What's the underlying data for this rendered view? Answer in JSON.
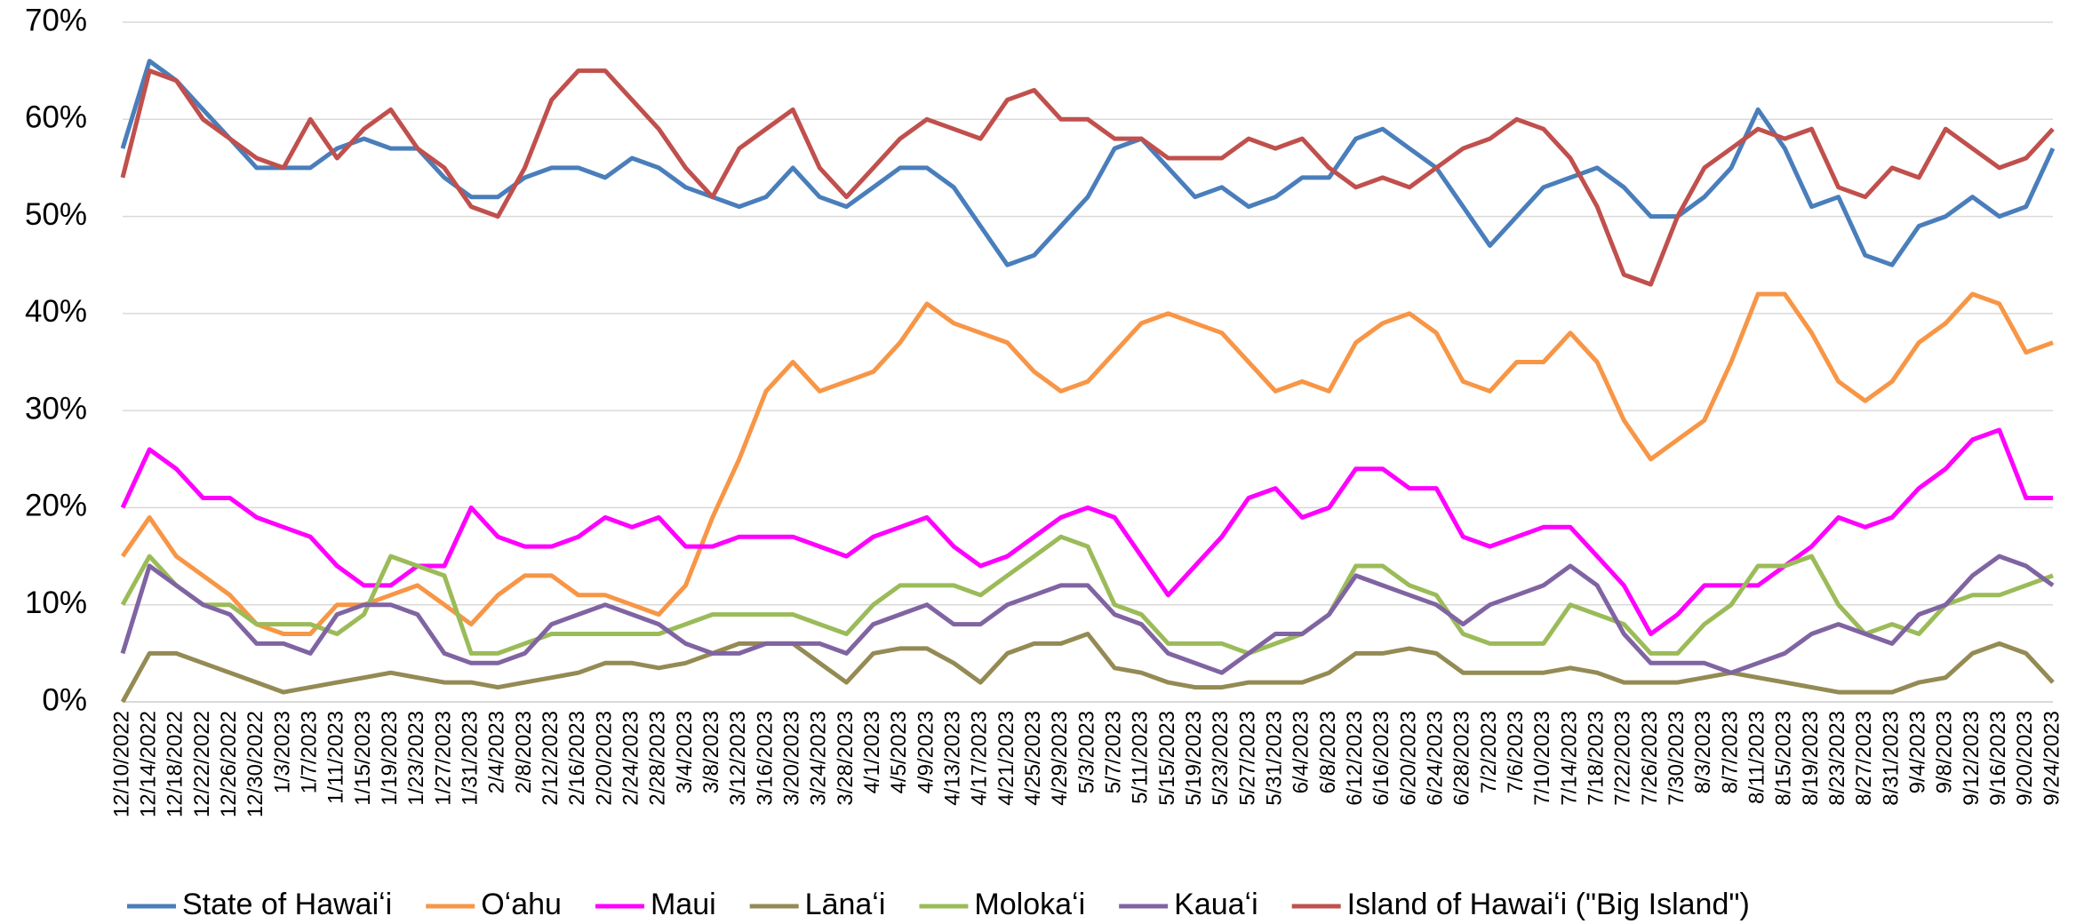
{
  "chart_data": {
    "type": "line",
    "categories": [
      "12/10/2022",
      "12/14/2022",
      "12/18/2022",
      "12/22/2022",
      "12/26/2022",
      "12/30/2022",
      "1/3/2023",
      "1/7/2023",
      "1/11/2023",
      "1/15/2023",
      "1/19/2023",
      "1/23/2023",
      "1/27/2023",
      "1/31/2023",
      "2/4/2023",
      "2/8/2023",
      "2/12/2023",
      "2/16/2023",
      "2/20/2023",
      "2/24/2023",
      "2/28/2023",
      "3/4/2023",
      "3/8/2023",
      "3/12/2023",
      "3/16/2023",
      "3/20/2023",
      "3/24/2023",
      "3/28/2023",
      "4/1/2023",
      "4/5/2023",
      "4/9/2023",
      "4/13/2023",
      "4/17/2023",
      "4/21/2023",
      "4/25/2023",
      "4/29/2023",
      "5/3/2023",
      "5/7/2023",
      "5/11/2023",
      "5/15/2023",
      "5/19/2023",
      "5/23/2023",
      "5/27/2023",
      "5/31/2023",
      "6/4/2023",
      "6/8/2023",
      "6/12/2023",
      "6/16/2023",
      "6/20/2023",
      "6/24/2023",
      "6/28/2023",
      "7/2/2023",
      "7/6/2023",
      "7/10/2023",
      "7/14/2023",
      "7/18/2023",
      "7/22/2023",
      "7/26/2023",
      "7/30/2023",
      "8/3/2023",
      "8/7/2023",
      "8/11/2023",
      "8/15/2023",
      "8/19/2023",
      "8/23/2023",
      "8/27/2023",
      "8/31/2023",
      "9/4/2023",
      "9/8/2023",
      "9/12/2023",
      "9/16/2023",
      "9/20/2023",
      "9/24/2023"
    ],
    "series": [
      {
        "name": "State of Hawaiʻi",
        "color": "#4a7ebb",
        "values": [
          57,
          66,
          64,
          61,
          58,
          55,
          55,
          55,
          57,
          58,
          57,
          57,
          54,
          52,
          52,
          54,
          55,
          55,
          54,
          56,
          55,
          53,
          52,
          51,
          52,
          55,
          52,
          51,
          53,
          55,
          55,
          53,
          49,
          45,
          46,
          49,
          52,
          57,
          58,
          55,
          52,
          53,
          51,
          52,
          54,
          54,
          58,
          59,
          57,
          55,
          51,
          47,
          50,
          53,
          54,
          55,
          53,
          50,
          50,
          52,
          55,
          61,
          57,
          51,
          52,
          46,
          45,
          49,
          50,
          52,
          50,
          51,
          57
        ]
      },
      {
        "name": "Oʻahu",
        "color": "#f79646",
        "values": [
          15,
          19,
          15,
          13,
          11,
          8,
          7,
          7,
          10,
          10,
          11,
          12,
          10,
          8,
          11,
          13,
          13,
          11,
          11,
          10,
          9,
          12,
          19,
          25,
          32,
          35,
          32,
          33,
          34,
          37,
          41,
          39,
          38,
          37,
          34,
          32,
          33,
          36,
          39,
          40,
          39,
          38,
          35,
          32,
          33,
          32,
          37,
          39,
          40,
          38,
          33,
          32,
          35,
          35,
          38,
          35,
          29,
          25,
          27,
          29,
          35,
          42,
          42,
          38,
          33,
          31,
          33,
          37,
          39,
          42,
          41,
          36,
          37
        ]
      },
      {
        "name": "Maui",
        "color": "#ff00ff",
        "values": [
          20,
          26,
          24,
          21,
          21,
          19,
          18,
          17,
          14,
          12,
          12,
          14,
          14,
          20,
          17,
          16,
          16,
          17,
          19,
          18,
          19,
          16,
          16,
          17,
          17,
          17,
          16,
          15,
          17,
          18,
          19,
          16,
          14,
          15,
          17,
          19,
          20,
          19,
          15,
          11,
          14,
          17,
          21,
          22,
          19,
          20,
          24,
          24,
          22,
          22,
          17,
          16,
          17,
          18,
          18,
          15,
          12,
          7,
          9,
          12,
          12,
          12,
          14,
          16,
          19,
          18,
          19,
          22,
          24,
          27,
          28,
          21,
          21
        ]
      },
      {
        "name": "Lānaʻi",
        "color": "#948a54",
        "values": [
          0,
          5,
          5,
          4,
          3,
          2,
          1,
          1.5,
          2,
          2.5,
          3,
          2.5,
          2,
          2,
          1.5,
          2,
          2.5,
          3,
          4,
          4,
          3.5,
          4,
          5,
          6,
          6,
          6,
          4,
          2,
          5,
          5.5,
          5.5,
          4,
          2,
          5,
          6,
          6,
          7,
          3.5,
          3,
          2,
          1.5,
          1.5,
          2,
          2,
          2,
          3,
          5,
          5,
          5.5,
          5,
          3,
          3,
          3,
          3,
          3.5,
          3,
          2,
          2,
          2,
          2.5,
          3,
          2.5,
          2,
          1.5,
          1,
          1,
          1,
          2,
          2.5,
          5,
          6,
          5,
          2
        ]
      },
      {
        "name": "Molokaʻi",
        "color": "#9bbb59",
        "values": [
          10,
          15,
          12,
          10,
          10,
          8,
          8,
          8,
          7,
          9,
          15,
          14,
          13,
          5,
          5,
          6,
          7,
          7,
          7,
          7,
          7,
          8,
          9,
          9,
          9,
          9,
          8,
          7,
          10,
          12,
          12,
          12,
          11,
          13,
          15,
          17,
          16,
          10,
          9,
          6,
          6,
          6,
          5,
          6,
          7,
          9,
          14,
          14,
          12,
          11,
          7,
          6,
          6,
          6,
          10,
          9,
          8,
          5,
          5,
          8,
          10,
          14,
          14,
          15,
          10,
          7,
          8,
          7,
          10,
          11,
          11,
          12,
          13
        ]
      },
      {
        "name": "Kauaʻi",
        "color": "#8064a2",
        "values": [
          5,
          14,
          12,
          10,
          9,
          6,
          6,
          5,
          9,
          10,
          10,
          9,
          5,
          4,
          4,
          5,
          8,
          9,
          10,
          9,
          8,
          6,
          5,
          5,
          6,
          6,
          6,
          5,
          8,
          9,
          10,
          8,
          8,
          10,
          11,
          12,
          12,
          9,
          8,
          5,
          4,
          3,
          5,
          7,
          7,
          9,
          13,
          12,
          11,
          10,
          8,
          10,
          11,
          12,
          14,
          12,
          7,
          4,
          4,
          4,
          3,
          4,
          5,
          7,
          8,
          7,
          6,
          9,
          10,
          13,
          15,
          14,
          12
        ]
      },
      {
        "name": "Island of Hawaiʻi (\"Big Island\")",
        "color": "#c0504d",
        "values": [
          54,
          65,
          64,
          60,
          58,
          56,
          55,
          60,
          56,
          59,
          61,
          57,
          55,
          51,
          50,
          55,
          62,
          65,
          65,
          62,
          59,
          55,
          52,
          57,
          59,
          61,
          55,
          52,
          55,
          58,
          60,
          59,
          58,
          62,
          63,
          60,
          60,
          58,
          58,
          56,
          56,
          56,
          58,
          57,
          58,
          55,
          53,
          54,
          53,
          55,
          57,
          58,
          60,
          59,
          56,
          51,
          44,
          43,
          50,
          55,
          57,
          59,
          58,
          59,
          53,
          52,
          55,
          54,
          59,
          57,
          55,
          56,
          59
        ]
      }
    ],
    "ylim": [
      0,
      70
    ],
    "yticks": [
      {
        "value": 0,
        "label": "0%"
      },
      {
        "value": 10,
        "label": "10%"
      },
      {
        "value": 20,
        "label": "20%"
      },
      {
        "value": 30,
        "label": "30%"
      },
      {
        "value": 40,
        "label": "40%"
      },
      {
        "value": 50,
        "label": "50%"
      },
      {
        "value": 60,
        "label": "60%"
      },
      {
        "value": 70,
        "label": "70%"
      }
    ],
    "grid": true,
    "legend": "bottom"
  }
}
